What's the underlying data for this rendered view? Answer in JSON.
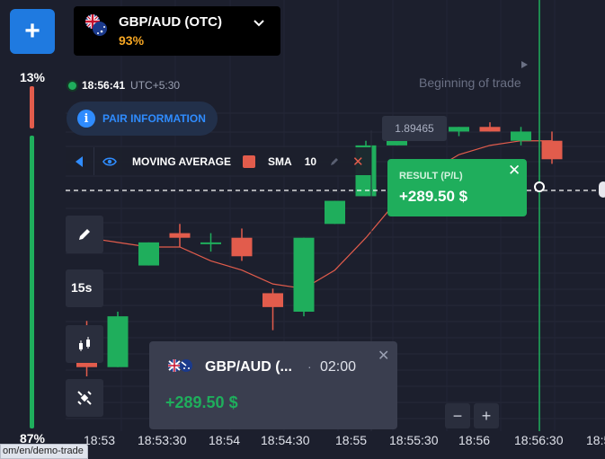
{
  "sidebar": {
    "add_label": "+",
    "up_percent": "13%",
    "down_percent": "87%"
  },
  "pair_selector": {
    "name": "GBP/AUD (OTC)",
    "payout": "93%"
  },
  "clock": {
    "time": "18:56:41",
    "timezone": "UTC+5:30"
  },
  "pair_info_label": "PAIR INFORMATION",
  "beginning_label": "Beginning of trade",
  "price_tag": "1.89465",
  "indicator": {
    "name": "MOVING AVERAGE",
    "type": "SMA",
    "period": "10",
    "color": "#e25c4c"
  },
  "result_box": {
    "label": "RESULT (P/L)",
    "value": "+289.50 $"
  },
  "timeframe": "15s",
  "toast": {
    "pair": "GBP/AUD (...",
    "separator": "·",
    "time": "02:00",
    "value": "+289.50 $"
  },
  "zoom": {
    "out": "−",
    "in": "+"
  },
  "time_axis": [
    "18:53",
    "18:53:30",
    "18:54",
    "18:54:30",
    "18:55",
    "18:55:30",
    "18:56",
    "18:56:30",
    "18:5"
  ],
  "status_url": "om/en/demo-trade",
  "colors": {
    "up": "#1fae5c",
    "down": "#e25c4c",
    "accent": "#1f7ae0",
    "payout": "#f6a623"
  },
  "chart_data": {
    "type": "candlestick",
    "candles": [
      {
        "dir": "down",
        "open": 1.8938,
        "high": 1.8939,
        "low": 1.8927,
        "close": 1.8929
      },
      {
        "dir": "up",
        "open": 1.8929,
        "high": 1.8941,
        "low": 1.8929,
        "close": 1.894
      },
      {
        "dir": "up",
        "open": 1.8951,
        "high": 1.8956,
        "low": 1.8951,
        "close": 1.8956
      },
      {
        "dir": "down",
        "open": 1.8958,
        "high": 1.896,
        "low": 1.8955,
        "close": 1.8957
      },
      {
        "dir": "up",
        "open": 1.8956,
        "high": 1.8958,
        "low": 1.8954,
        "close": 1.8956
      },
      {
        "dir": "down",
        "open": 1.8957,
        "high": 1.8959,
        "low": 1.8952,
        "close": 1.8953
      },
      {
        "dir": "down",
        "open": 1.8945,
        "high": 1.8946,
        "low": 1.8937,
        "close": 1.8942
      },
      {
        "dir": "up",
        "open": 1.8941,
        "high": 1.8957,
        "low": 1.894,
        "close": 1.8957
      },
      {
        "dir": "up",
        "open": 1.896,
        "high": 1.8965,
        "low": 1.896,
        "close": 1.8965
      },
      {
        "dir": "up",
        "open": 1.8966,
        "high": 1.8978,
        "low": 1.8966,
        "close": 1.8977
      },
      {
        "dir": "up",
        "open": 1.8977,
        "high": 1.8981,
        "low": 1.8977,
        "close": 1.898
      },
      {
        "dir": "down",
        "open": 1.898,
        "high": 1.8981,
        "low": 1.8978,
        "close": 1.8979
      },
      {
        "dir": "up",
        "open": 1.898,
        "high": 1.8981,
        "low": 1.8979,
        "close": 1.8981
      },
      {
        "dir": "down",
        "open": 1.8981,
        "high": 1.8982,
        "low": 1.898,
        "close": 1.898
      },
      {
        "dir": "up",
        "open": 1.8978,
        "high": 1.8981,
        "low": 1.8977,
        "close": 1.898
      },
      {
        "dir": "down",
        "open": 1.8978,
        "high": 1.898,
        "low": 1.8973,
        "close": 1.8974
      }
    ],
    "sma": [
      1.8957,
      1.8956,
      1.8955,
      1.8955,
      1.8952,
      1.895,
      1.8947,
      1.8946,
      1.895,
      1.8957,
      1.8965,
      1.8971,
      1.8975,
      1.8977,
      1.8978,
      1.8978
    ],
    "current_price": 1.8975,
    "ylim": [
      1.892,
      1.899
    ]
  }
}
